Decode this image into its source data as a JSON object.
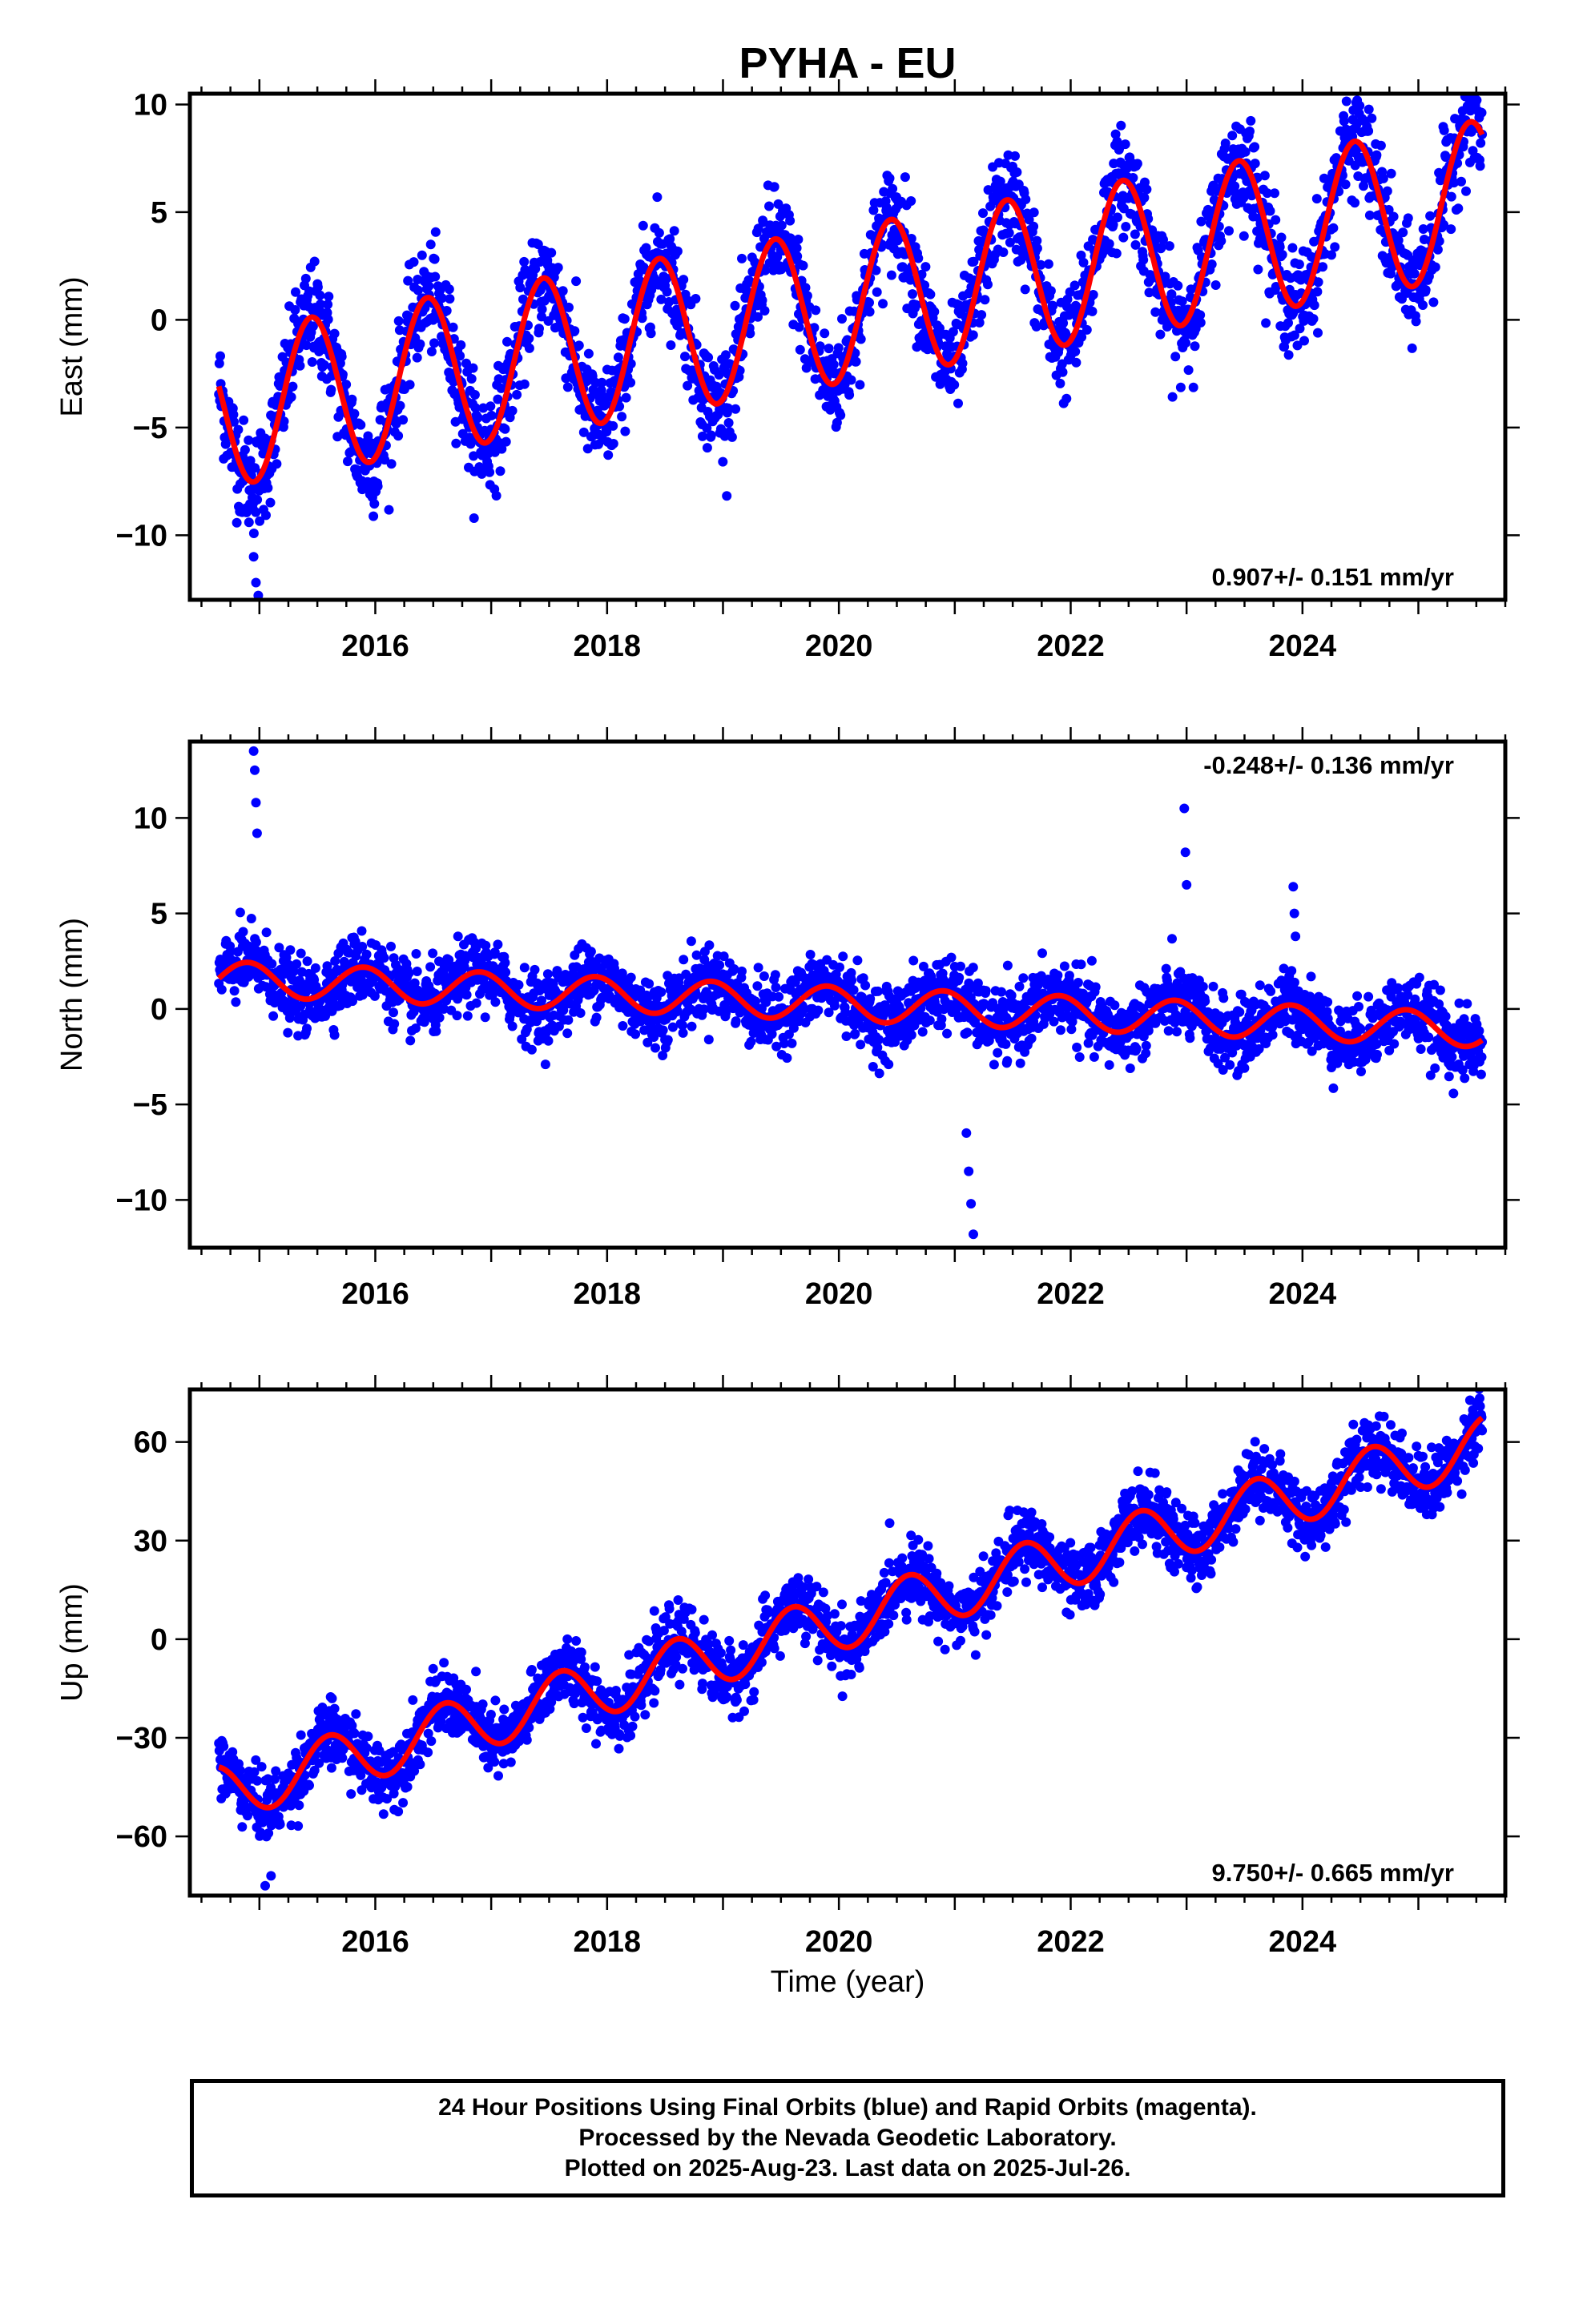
{
  "title": "PYHA - EU",
  "xlabel": "Time (year)",
  "colors": {
    "points": "#0000ff",
    "fit": "#ff0000",
    "axes": "#000000"
  },
  "chart_data": [
    {
      "type": "scatter",
      "panel": "east",
      "ylabel": "East (mm)",
      "rate_text": "0.907+/- 0.151 mm/yr",
      "rate_position": "bottom-right",
      "xlim": [
        2014.4,
        2025.75
      ],
      "ylim": [
        -13,
        10.5
      ],
      "xticks": [
        2016,
        2018,
        2020,
        2022,
        2024
      ],
      "xtick_labels": [
        "2016",
        "2018",
        "2020",
        "2022",
        "2024"
      ],
      "yticks": [
        -10,
        -5,
        0,
        5,
        10
      ],
      "ytick_labels": [
        "−10",
        "−5",
        "0",
        "5",
        "10"
      ],
      "trend": {
        "t0": 2014.65,
        "t1": 2025.55,
        "value_at_t0": -4.2,
        "rate": 0.907
      },
      "annual": {
        "amplitude": 3.6,
        "peak_phase": 0.45
      },
      "noise_sd": 1.2,
      "outliers": [
        [
          2014.95,
          -11.0
        ],
        [
          2014.97,
          -12.2
        ],
        [
          2014.99,
          -12.8
        ]
      ],
      "fit_series_color": "#ff0000",
      "points_color": "#0000ff"
    },
    {
      "type": "scatter",
      "panel": "north",
      "ylabel": "North (mm)",
      "rate_text": "-0.248+/- 0.136 mm/yr",
      "rate_position": "top-right",
      "xlim": [
        2014.4,
        2025.75
      ],
      "ylim": [
        -12.5,
        14
      ],
      "xticks": [
        2016,
        2018,
        2020,
        2022,
        2024
      ],
      "xtick_labels": [
        "2016",
        "2018",
        "2020",
        "2022",
        "2024"
      ],
      "yticks": [
        -10,
        -5,
        0,
        5,
        10
      ],
      "ytick_labels": [
        "−10",
        "−5",
        "0",
        "5",
        "10"
      ],
      "trend": {
        "t0": 2014.65,
        "t1": 2025.55,
        "value_at_t0": 1.6,
        "rate": -0.248
      },
      "annual": {
        "amplitude": 0.9,
        "peak_phase": 0.9
      },
      "noise_sd": 0.9,
      "outliers": [
        [
          2014.95,
          13.5
        ],
        [
          2014.96,
          12.5
        ],
        [
          2014.97,
          10.8
        ],
        [
          2014.98,
          9.2
        ],
        [
          2022.98,
          10.5
        ],
        [
          2022.99,
          8.2
        ],
        [
          2023.0,
          6.5
        ],
        [
          2023.92,
          6.4
        ],
        [
          2023.93,
          5.0
        ],
        [
          2023.94,
          3.8
        ],
        [
          2021.1,
          -6.5
        ],
        [
          2021.12,
          -8.5
        ],
        [
          2021.14,
          -10.2
        ],
        [
          2021.16,
          -11.8
        ]
      ],
      "fit_series_color": "#ff0000",
      "points_color": "#0000ff"
    },
    {
      "type": "scatter",
      "panel": "up",
      "ylabel": "Up (mm)",
      "rate_text": "9.750+/- 0.665 mm/yr",
      "rate_position": "bottom-right",
      "xlim": [
        2014.4,
        2025.75
      ],
      "ylim": [
        -78,
        76
      ],
      "xticks": [
        2016,
        2018,
        2020,
        2022,
        2024
      ],
      "xtick_labels": [
        "2016",
        "2018",
        "2020",
        "2022",
        "2024"
      ],
      "yticks": [
        -60,
        -30,
        0,
        30,
        60
      ],
      "ytick_labels": [
        "−60",
        "−30",
        "0",
        "30",
        "60"
      ],
      "trend": {
        "t0": 2014.65,
        "t1": 2025.55,
        "value_at_t0": -47,
        "rate": 9.75
      },
      "annual": {
        "amplitude": 8.5,
        "peak_phase": 0.6
      },
      "noise_sd": 5.0,
      "outliers": [
        [
          2015.05,
          -75
        ],
        [
          2015.1,
          -72
        ],
        [
          2025.5,
          72
        ]
      ],
      "fit_series_color": "#ff0000",
      "points_color": "#0000ff"
    }
  ],
  "footer": {
    "line1": "24 Hour Positions Using Final Orbits (blue) and Rapid Orbits (magenta).",
    "line2": "Processed by the Nevada Geodetic Laboratory.",
    "line3": "Plotted on 2025-Aug-23. Last data on 2025-Jul-26."
  }
}
